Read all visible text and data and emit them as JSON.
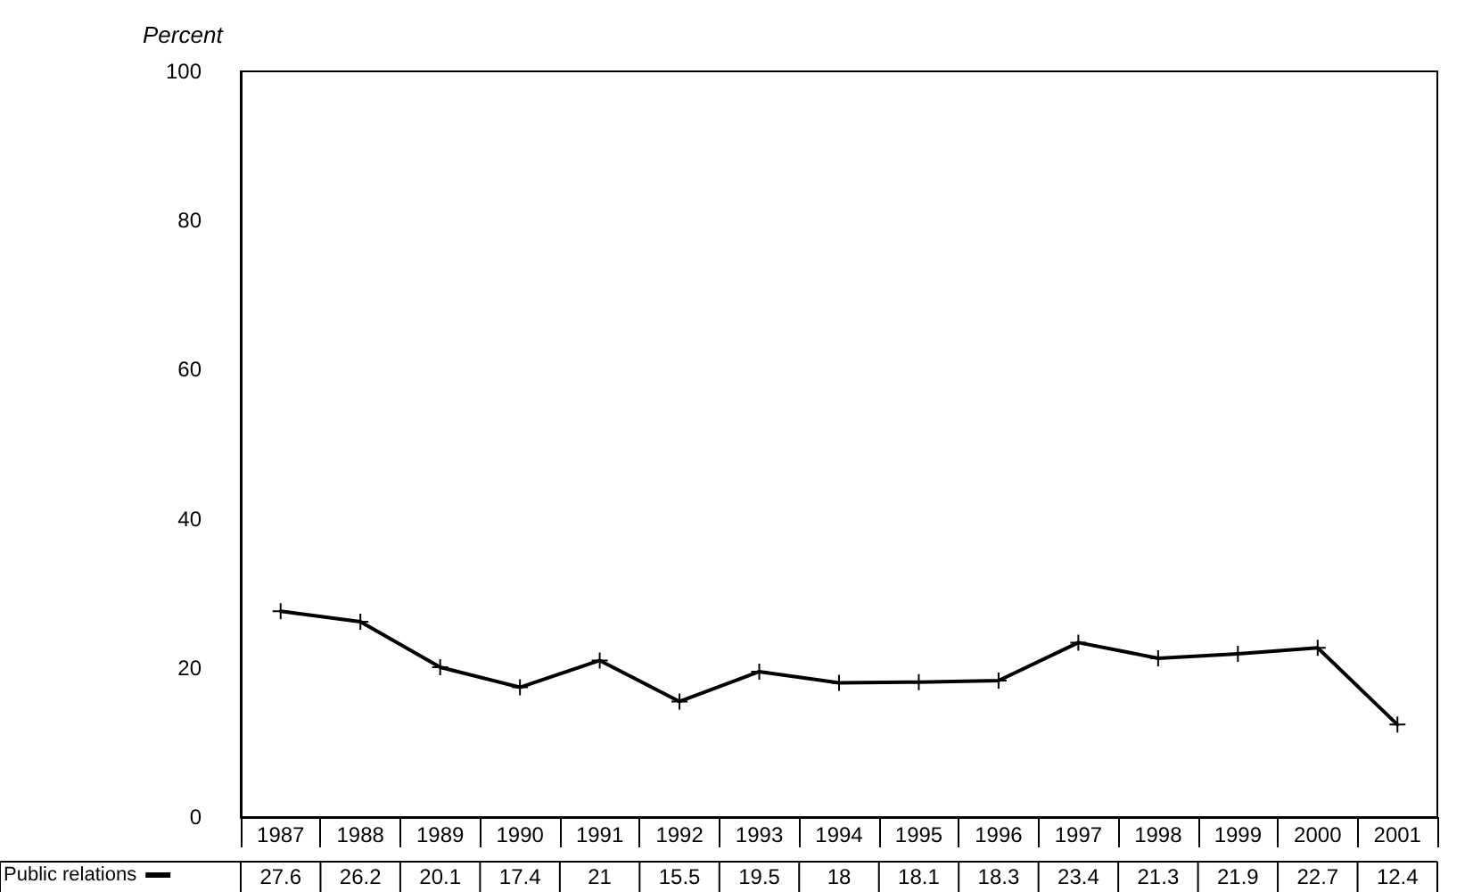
{
  "chart_data": {
    "type": "line",
    "ylabel": "Percent",
    "categories": [
      "1987",
      "1988",
      "1989",
      "1990",
      "1991",
      "1992",
      "1993",
      "1994",
      "1995",
      "1996",
      "1997",
      "1998",
      "1999",
      "2000",
      "2001"
    ],
    "series": [
      {
        "name": "Public relations",
        "color": "#000000",
        "values": [
          27.6,
          26.2,
          20.1,
          17.4,
          21,
          15.5,
          19.5,
          18,
          18.1,
          18.3,
          23.4,
          21.3,
          21.9,
          22.7,
          12.4
        ]
      }
    ],
    "ylim": [
      0,
      100
    ],
    "yticks": [
      0,
      20,
      40,
      60,
      80,
      100
    ],
    "grid": false,
    "legend": "bottom left",
    "marker": "cross",
    "line_style": "solid",
    "data_labels": true
  }
}
